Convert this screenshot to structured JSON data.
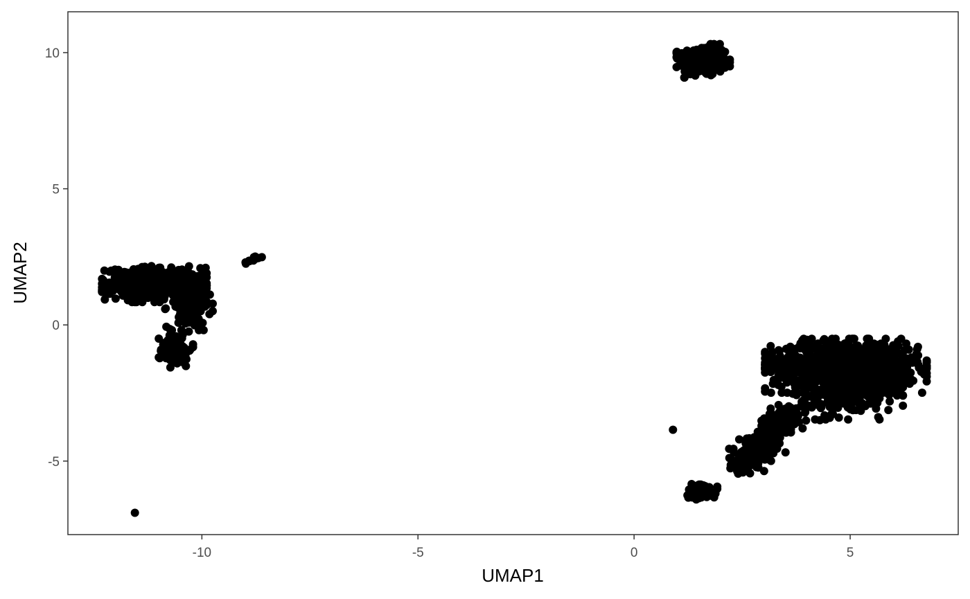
{
  "chart_data": {
    "type": "scatter",
    "xlabel": "UMAP1",
    "ylabel": "UMAP2",
    "xlim": [
      -13.1,
      7.5
    ],
    "ylim": [
      -7.7,
      11.5
    ],
    "x_ticks": [
      -10,
      -5,
      0,
      5
    ],
    "x_tick_labels": [
      "-10",
      "-5",
      "0",
      "5"
    ],
    "y_ticks": [
      -5,
      0,
      5,
      10
    ],
    "y_tick_labels": [
      "-5",
      "0",
      "5",
      "10"
    ],
    "grid": false,
    "legend": "none",
    "point_color": "#000000",
    "clusters": [
      {
        "name": "cluster-top",
        "cx": 1.6,
        "cy": 9.7,
        "sx": 0.28,
        "sy": 0.28,
        "n": 260
      },
      {
        "name": "cluster-left-main",
        "cx": -11.1,
        "cy": 1.5,
        "sx": 0.55,
        "sy": 0.3,
        "n": 420
      },
      {
        "name": "cluster-left-right",
        "cx": -10.3,
        "cy": 0.8,
        "sx": 0.25,
        "sy": 0.45,
        "n": 180
      },
      {
        "name": "cluster-left-tail",
        "cx": -10.6,
        "cy": -0.9,
        "sx": 0.18,
        "sy": 0.3,
        "n": 90
      },
      {
        "name": "cluster-right-main",
        "cx": 4.9,
        "cy": -1.5,
        "sx": 0.85,
        "sy": 0.45,
        "n": 900
      },
      {
        "name": "cluster-right-lower",
        "cx": 4.9,
        "cy": -2.7,
        "sx": 0.6,
        "sy": 0.35,
        "n": 160
      },
      {
        "name": "cluster-bottom",
        "cx": 1.55,
        "cy": -6.1,
        "sx": 0.17,
        "sy": 0.14,
        "n": 80
      }
    ],
    "streaks": [
      {
        "name": "streak-small",
        "x0": -9.0,
        "y0": 2.28,
        "x1": -8.65,
        "y1": 2.52,
        "n": 14,
        "jitter": 0.03
      },
      {
        "name": "streak-diagonal",
        "x0": 2.4,
        "y0": -5.3,
        "x1": 3.6,
        "y1": -3.2,
        "n": 320,
        "jitter": 0.18
      }
    ],
    "singletons": [
      {
        "x": -11.55,
        "y": -6.9
      },
      {
        "x": 0.9,
        "y": -3.85
      },
      {
        "x": 2.3,
        "y": -4.55
      },
      {
        "x": 4.3,
        "y": -3.5
      },
      {
        "x": 3.9,
        "y": -3.8
      },
      {
        "x": 2.2,
        "y": -4.55
      },
      {
        "x": 3.8,
        "y": -3.3
      }
    ]
  }
}
